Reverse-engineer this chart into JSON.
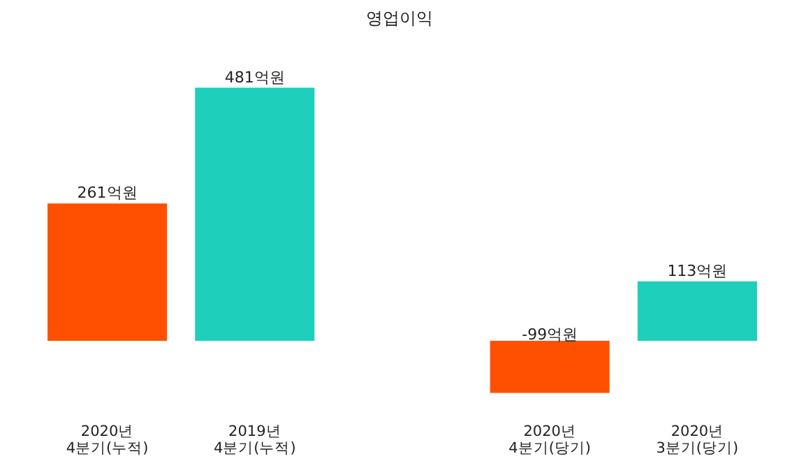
{
  "chart_data": {
    "type": "bar",
    "title": "영업이익",
    "categories": [
      "2020년\n4분기(누적)",
      "2019년\n4분기(누적)",
      null,
      "2020년\n4분기(당기)",
      "2020년\n3분기(당기)"
    ],
    "values": [
      261,
      481,
      null,
      -99,
      113
    ],
    "colors": [
      "#ff5000",
      "#1ecfbb",
      null,
      "#ff5000",
      "#1ecfbb"
    ],
    "value_labels": [
      "261억원",
      "481억원",
      null,
      "-99억원",
      "113억원"
    ]
  }
}
